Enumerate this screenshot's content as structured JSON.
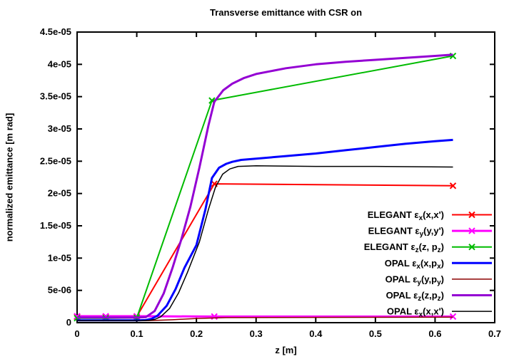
{
  "chart_data": {
    "type": "line",
    "title": "Transverse emittance with CSR on",
    "xlabel": "z [m]",
    "ylabel": "normalized emittance [m rad]",
    "xlim": [
      0,
      0.7
    ],
    "ylim": [
      0,
      4.5e-05
    ],
    "grid": false,
    "legend_position": "inside bottom right, no box",
    "xticks": {
      "values": [
        0,
        0.1,
        0.2,
        0.3,
        0.4,
        0.5,
        0.6,
        0.7
      ],
      "labels": [
        "0",
        "0.1",
        "0.2",
        "0.3",
        "0.4",
        "0.5",
        "0.6",
        "0.7"
      ]
    },
    "yticks": {
      "values": [
        0,
        5e-06,
        1e-05,
        1.5e-05,
        2e-05,
        2.5e-05,
        3e-05,
        3.5e-05,
        4e-05,
        4.5e-05
      ],
      "labels": [
        "0",
        "5e-06",
        "1e-05",
        "1.5e-05",
        "2e-05",
        "2.5e-05",
        "3e-05",
        "3.5e-05",
        "4e-05",
        "4.5e-05"
      ]
    },
    "series": [
      {
        "name": "ELEGANT ε_x(x,x')",
        "color": "#ff0000",
        "width": 2,
        "marker": "x",
        "x": [
          0,
          0.048,
          0.1,
          0.23,
          0.63
        ],
        "y": [
          9e-07,
          9e-07,
          9.5e-07,
          2.15e-05,
          2.12e-05
        ]
      },
      {
        "name": "ELEGANT ε_y(y,y')",
        "color": "#ff00ff",
        "width": 3,
        "marker": "x",
        "x": [
          0,
          0.048,
          0.1,
          0.23,
          0.63
        ],
        "y": [
          1e-06,
          1e-06,
          1e-06,
          9.5e-07,
          9.5e-07
        ]
      },
      {
        "name": "ELEGANT ε_z(z, p_z)",
        "color": "#00bb00",
        "width": 2,
        "marker": "x",
        "x": [
          0,
          0.048,
          0.1,
          0.226,
          0.63
        ],
        "y": [
          7e-07,
          7e-07,
          7.5e-07,
          3.44e-05,
          4.13e-05
        ]
      },
      {
        "name": "OPAL ε_x(x,p_x)",
        "color": "#0000ff",
        "width": 3,
        "marker": null,
        "x": [
          0,
          0.1,
          0.115,
          0.125,
          0.135,
          0.15,
          0.165,
          0.18,
          0.2,
          0.215,
          0.226,
          0.238,
          0.25,
          0.26,
          0.275,
          0.3,
          0.35,
          0.4,
          0.45,
          0.5,
          0.55,
          0.6,
          0.63
        ],
        "y": [
          3.5e-07,
          3.5e-07,
          4e-07,
          6e-07,
          1.1e-06,
          2.6e-06,
          5.2e-06,
          8.5e-06,
          1.2e-05,
          1.75e-05,
          2.24e-05,
          2.4e-05,
          2.46e-05,
          2.49e-05,
          2.52e-05,
          2.54e-05,
          2.58e-05,
          2.62e-05,
          2.67e-05,
          2.72e-05,
          2.77e-05,
          2.81e-05,
          2.83e-05
        ]
      },
      {
        "name": "OPAL ε_y(y,p_y)",
        "color": "#8b0000",
        "width": 1.5,
        "marker": null,
        "x": [
          0,
          0.12,
          0.16,
          0.2,
          0.25,
          0.4,
          0.63
        ],
        "y": [
          3e-07,
          3.2e-07,
          4.5e-07,
          6.5e-07,
          7.8e-07,
          8.2e-07,
          8.5e-07
        ]
      },
      {
        "name": "OPAL ε_z(z,p_z)",
        "color": "#9400d3",
        "width": 3,
        "marker": null,
        "x": [
          0,
          0.1,
          0.115,
          0.13,
          0.145,
          0.16,
          0.175,
          0.19,
          0.205,
          0.22,
          0.23,
          0.245,
          0.26,
          0.28,
          0.3,
          0.35,
          0.4,
          0.45,
          0.5,
          0.55,
          0.6,
          0.63
        ],
        "y": [
          8e-07,
          8e-07,
          8.5e-07,
          1.8e-06,
          4.5e-06,
          8.5e-06,
          1.3e-05,
          1.8e-05,
          2.4e-05,
          3.05e-05,
          3.42e-05,
          3.6e-05,
          3.7e-05,
          3.79e-05,
          3.85e-05,
          3.94e-05,
          4e-05,
          4.04e-05,
          4.07e-05,
          4.1e-05,
          4.13e-05,
          4.15e-05
        ]
      },
      {
        "name": "OPAL ε_x(x,x')",
        "color": "#000000",
        "width": 1.5,
        "marker": null,
        "x": [
          0,
          0.105,
          0.12,
          0.13,
          0.14,
          0.155,
          0.17,
          0.185,
          0.205,
          0.22,
          0.232,
          0.244,
          0.256,
          0.27,
          0.3,
          0.4,
          0.5,
          0.63
        ],
        "y": [
          3e-07,
          3e-07,
          3.5e-07,
          5e-07,
          9e-07,
          2.2e-06,
          4.6e-06,
          7.8e-06,
          1.25e-05,
          1.75e-05,
          2.1e-05,
          2.3e-05,
          2.38e-05,
          2.42e-05,
          2.43e-05,
          2.42e-05,
          2.42e-05,
          2.41e-05
        ]
      }
    ]
  }
}
